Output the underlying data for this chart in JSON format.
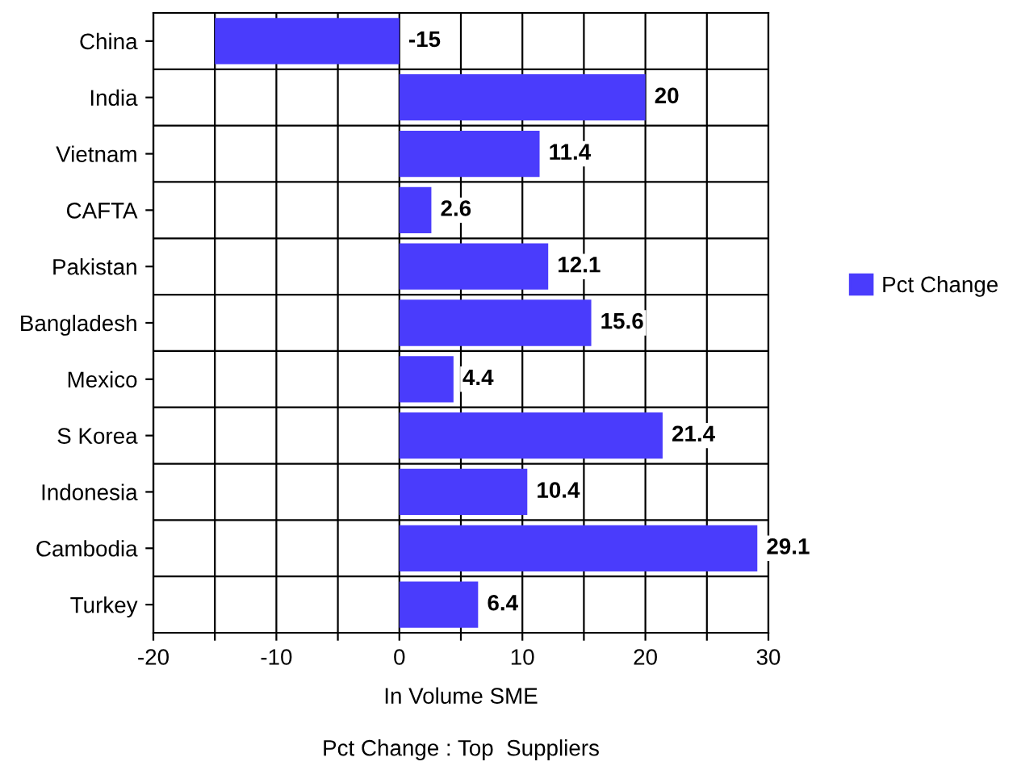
{
  "chart_data": {
    "type": "bar",
    "orientation": "horizontal",
    "title": "Pct Change : Top  Suppliers",
    "xlabel": "In Volume SME",
    "categories": [
      "China",
      "India",
      "Vietnam",
      "CAFTA",
      "Pakistan",
      "Bangladesh",
      "Mexico",
      "S Korea",
      "Indonesia",
      "Cambodia",
      "Turkey"
    ],
    "series": [
      {
        "name": "Pct Change",
        "color": "#4a3cfc",
        "values": [
          -15,
          20,
          11.4,
          2.6,
          12.1,
          15.6,
          4.4,
          21.4,
          10.4,
          29.1,
          6.4
        ]
      }
    ],
    "xlim": [
      -20,
      30
    ],
    "xticks": [
      -20,
      {
        "value": -15,
        "label": null
      },
      -10,
      {
        "value": -5,
        "label": null
      },
      0,
      {
        "value": 5,
        "label": null
      },
      10,
      {
        "value": 15,
        "label": null
      },
      20,
      {
        "value": 25,
        "label": null
      },
      30
    ],
    "grid": true,
    "data_labels": true,
    "legend": "right"
  }
}
